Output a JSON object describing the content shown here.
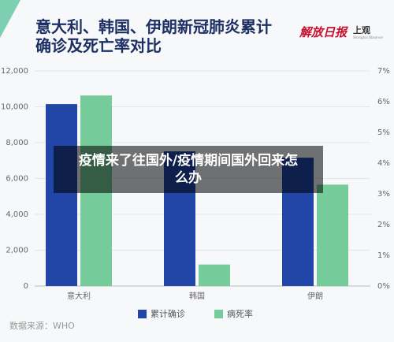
{
  "chart_data": {
    "type": "bar",
    "title": "意大利、韩国、伊朗新冠肺炎累计确诊及死亡率对比",
    "categories": [
      "意大利",
      "韩国",
      "伊朗"
    ],
    "series": [
      {
        "name": "累计确诊",
        "color": "#2146a8",
        "values": [
          10149,
          7513,
          7161
        ]
      },
      {
        "name": "病死率",
        "color": "#75cc9a",
        "values": [
          6.2,
          0.7,
          3.3
        ],
        "axis": "y2"
      }
    ],
    "ylim": [
      0,
      12000
    ],
    "yticks": [
      0,
      {
        "value": 2000,
        "label": "2,000"
      },
      {
        "value": 4000,
        "label": "4,000"
      },
      {
        "value": 6000,
        "label": "6,000"
      },
      {
        "value": 8000,
        "label": "8,000"
      },
      {
        "value": 10000,
        "label": "10,000"
      },
      {
        "value": 12000,
        "label": "12,000"
      }
    ],
    "y2lim": [
      0,
      7
    ],
    "y2ticks": [
      {
        "value": 0,
        "label": "0%"
      },
      {
        "value": 1,
        "label": "1%"
      },
      {
        "value": 2,
        "label": "2%"
      },
      {
        "value": 3,
        "label": "3%"
      },
      {
        "value": 4,
        "label": "4%"
      },
      {
        "value": 5,
        "label": "5%"
      },
      {
        "value": 6,
        "label": "6%"
      },
      {
        "value": 7,
        "label": "7%"
      }
    ],
    "grid": true,
    "legend": "bottom",
    "source": "数据来源：WHO"
  },
  "logos": [
    "解放日报",
    "上观",
    "Shanghai Observer"
  ],
  "banner": "疫情来了往国外/疫情期间国外回来怎么办"
}
